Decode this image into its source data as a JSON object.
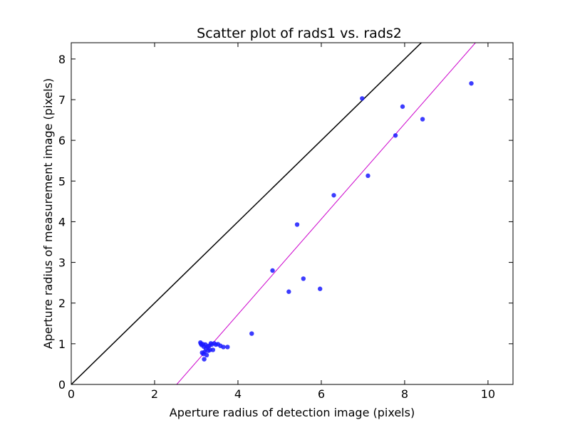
{
  "chart_data": {
    "type": "scatter",
    "title": "Scatter plot of rads1 vs. rads2",
    "xlabel": "Aperture radius of detection image (pixels)",
    "ylabel": "Aperture radius of measurement image (pixels)",
    "xlim": [
      0,
      10.6
    ],
    "ylim": [
      0,
      8.4
    ],
    "x_ticks": [
      0,
      2,
      4,
      6,
      8,
      10
    ],
    "y_ticks": [
      0,
      1,
      2,
      3,
      4,
      5,
      6,
      7,
      8
    ],
    "x_tick_labels": [
      "0",
      "2",
      "4",
      "6",
      "8",
      "10"
    ],
    "y_tick_labels": [
      "0",
      "1",
      "2",
      "3",
      "4",
      "5",
      "6",
      "7",
      "8"
    ],
    "grid": false,
    "legend": "none",
    "point_color": "#1a1aff",
    "series": [
      {
        "points": [
          {
            "x": 9.6,
            "y": 7.4
          },
          {
            "x": 8.43,
            "y": 6.52
          },
          {
            "x": 7.95,
            "y": 6.83
          },
          {
            "x": 7.78,
            "y": 6.12
          },
          {
            "x": 7.12,
            "y": 5.13
          },
          {
            "x": 6.98,
            "y": 7.03
          },
          {
            "x": 6.3,
            "y": 4.65
          },
          {
            "x": 5.97,
            "y": 2.35
          },
          {
            "x": 5.57,
            "y": 2.6
          },
          {
            "x": 5.42,
            "y": 3.93
          },
          {
            "x": 5.22,
            "y": 2.28
          },
          {
            "x": 4.83,
            "y": 2.8
          },
          {
            "x": 4.33,
            "y": 1.25
          },
          {
            "x": 3.75,
            "y": 0.92
          },
          {
            "x": 3.65,
            "y": 0.92
          },
          {
            "x": 3.58,
            "y": 0.95
          },
          {
            "x": 3.52,
            "y": 0.99
          },
          {
            "x": 3.47,
            "y": 0.98
          },
          {
            "x": 3.43,
            "y": 1.01
          },
          {
            "x": 3.4,
            "y": 0.85
          },
          {
            "x": 3.37,
            "y": 0.98
          },
          {
            "x": 3.35,
            "y": 1.01
          },
          {
            "x": 3.33,
            "y": 0.85
          },
          {
            "x": 3.31,
            "y": 0.95
          },
          {
            "x": 3.29,
            "y": 0.83
          },
          {
            "x": 3.27,
            "y": 0.93
          },
          {
            "x": 3.25,
            "y": 0.72
          },
          {
            "x": 3.23,
            "y": 0.88
          },
          {
            "x": 3.22,
            "y": 0.98
          },
          {
            "x": 3.2,
            "y": 0.8
          },
          {
            "x": 3.19,
            "y": 0.62
          },
          {
            "x": 3.18,
            "y": 0.93
          },
          {
            "x": 3.17,
            "y": 0.75
          },
          {
            "x": 3.16,
            "y": 0.99
          },
          {
            "x": 3.14,
            "y": 0.78
          },
          {
            "x": 3.13,
            "y": 0.97
          },
          {
            "x": 3.11,
            "y": 1.0
          },
          {
            "x": 3.1,
            "y": 1.03
          }
        ]
      }
    ],
    "reference_lines": [
      {
        "x": [
          0,
          8.5
        ],
        "y": [
          0,
          8.5
        ],
        "color": "#000000"
      },
      {
        "x": [
          2.53,
          9.7
        ],
        "y": [
          0,
          8.4
        ],
        "color": "#cc00cc"
      }
    ]
  }
}
